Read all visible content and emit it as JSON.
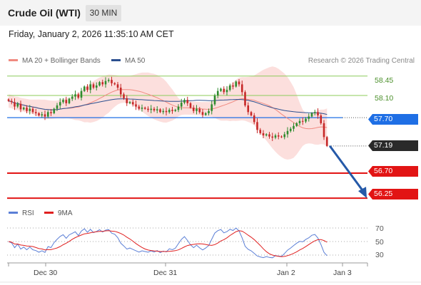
{
  "header": {
    "title": "Crude Oil (WTI)",
    "timeframe": "30 MIN"
  },
  "datetime": "Friday, January 2, 2026 11:35:10 AM CET",
  "legend": {
    "ma20_bb": {
      "label": "MA 20 + Bollinger Bands",
      "color": "#f08a80"
    },
    "ma50": {
      "label": "MA 50",
      "color": "#2b4f8f"
    }
  },
  "credit": "Research © 2026 Trading Central",
  "levels": {
    "resistance_2": "58.45",
    "resistance_1": "58.10",
    "pivot": "57.70",
    "last_price": "57.19",
    "support_1": "56.70",
    "support_2": "56.25"
  },
  "rsi_legend": {
    "rsi": {
      "label": "RSI",
      "color": "#5b7fd6"
    },
    "ma9": {
      "label": "9MA",
      "color": "#e02020"
    }
  },
  "rsi_ticks": [
    "70",
    "50",
    "30"
  ],
  "x_labels": [
    "Dec 30",
    "Dec 31",
    "Jan 2",
    "Jan 3"
  ],
  "colors": {
    "up": "#2e8b2e",
    "down": "#c62828",
    "pivot": "#1f6fe5",
    "support": "#e21414",
    "resistance": "#8ccc5a",
    "arrow": "#2559a8"
  },
  "chart_data": {
    "type": "candlestick",
    "instrument": "Crude Oil (WTI)",
    "interval": "30 MIN",
    "y_range": [
      56.2,
      58.6
    ],
    "price_path_close": [
      58.0,
      57.98,
      57.9,
      57.95,
      57.85,
      57.88,
      57.82,
      57.86,
      57.8,
      57.78,
      57.74,
      57.76,
      57.72,
      57.8,
      57.78,
      57.86,
      57.92,
      57.98,
      58.02,
      57.96,
      58.04,
      58.08,
      58.12,
      58.06,
      58.18,
      58.26,
      58.2,
      58.3,
      58.24,
      58.28,
      58.34,
      58.3,
      58.36,
      58.38,
      58.32,
      58.3,
      58.24,
      58.12,
      58.05,
      57.96,
      57.98,
      57.94,
      57.9,
      57.86,
      57.88,
      57.86,
      57.84,
      57.86,
      57.83,
      57.85,
      57.8,
      57.82,
      57.8,
      57.84,
      57.82,
      57.84,
      57.9,
      57.97,
      58.02,
      57.96,
      57.88,
      57.82,
      57.86,
      57.8,
      57.75,
      57.78,
      57.82,
      57.94,
      58.1,
      58.18,
      58.22,
      58.16,
      58.2,
      58.28,
      58.26,
      58.35,
      58.3,
      58.16,
      57.92,
      57.8,
      57.74,
      57.62,
      57.48,
      57.42,
      57.38,
      57.4,
      57.36,
      57.34,
      57.38,
      57.36,
      57.35,
      57.4,
      57.46,
      57.5,
      57.55,
      57.6,
      57.64,
      57.63,
      57.68,
      57.72,
      57.78,
      57.8,
      57.74,
      57.6,
      57.35,
      57.19
    ],
    "overlays": [
      "MA 20 + Bollinger Bands",
      "MA 50"
    ],
    "levels": {
      "resistance": [
        58.45,
        58.1
      ],
      "pivot": 57.7,
      "support": [
        56.7,
        56.25
      ],
      "last": 57.19
    },
    "rsi": {
      "ticks": [
        70,
        50,
        30
      ]
    }
  }
}
